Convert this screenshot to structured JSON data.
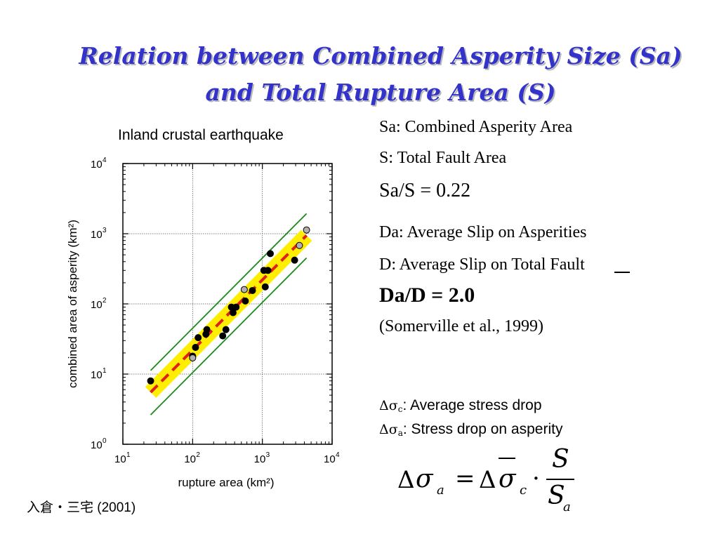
{
  "slide": {
    "title_line1": "Relation between Combined Asperity Size (Sa)",
    "title_line2": "and Total Rupture Area (S)",
    "definitions": {
      "sa": "Sa: Combined Asperity Area",
      "s": "S: Total Fault Area",
      "ratio_area": "Sa/S = 0.22",
      "da": "Da: Average Slip on Asperities",
      "d": "D: Average Slip on Total Fault",
      "ratio_slip": "Da/D = 2.0",
      "source": "(Somerville et al., 1999)"
    },
    "stress": {
      "delta_sigma": "Δσ",
      "sub_c": "c",
      "sub_a": "a",
      "line1_text": ": Average stress drop",
      "line2_text": ": Stress drop on asperity"
    },
    "formula": {
      "lhs_delta": "Δ",
      "sigma": "σ",
      "sub_a": "a",
      "equals": "=",
      "rhs_delta": "Δ",
      "sub_c": "c",
      "dot": "·",
      "numerator": "S",
      "denominator": "S",
      "den_sub": "a"
    },
    "reference": "入倉・三宅 (2001)"
  },
  "chart_data": {
    "type": "scatter",
    "title": "Inland crustal earthquake",
    "xlabel": "rupture area (km²)",
    "ylabel": "combined area of asperity (km²)",
    "xscale": "log",
    "yscale": "log",
    "xlim": [
      10,
      10000
    ],
    "ylim": [
      1,
      10000
    ],
    "x_ticks": [
      {
        "value": 10,
        "base": "10",
        "exp": "1"
      },
      {
        "value": 100,
        "base": "10",
        "exp": "2"
      },
      {
        "value": 1000,
        "base": "10",
        "exp": "3"
      },
      {
        "value": 10000,
        "base": "10",
        "exp": "4"
      }
    ],
    "y_ticks": [
      {
        "value": 1,
        "base": "10",
        "exp": "0"
      },
      {
        "value": 10,
        "base": "10",
        "exp": "1"
      },
      {
        "value": 100,
        "base": "10",
        "exp": "2"
      },
      {
        "value": 1000,
        "base": "10",
        "exp": "3"
      },
      {
        "value": 10000,
        "base": "10",
        "exp": "4"
      }
    ],
    "grid": true,
    "fit": {
      "ratio": 0.22,
      "x_range": [
        25,
        4300
      ],
      "color": "#e02020",
      "band_color": "#ffee00"
    },
    "bounds": [
      {
        "ratio": 0.45,
        "x_range": [
          25,
          4300
        ]
      },
      {
        "ratio": 0.105,
        "x_range": [
          25,
          4300
        ]
      }
    ],
    "bounds_color": "#1a8a1a",
    "series": [
      {
        "color": "#000000",
        "points": [
          [
            25,
            8
          ],
          [
            100,
            18
          ],
          [
            110,
            24
          ],
          [
            120,
            33
          ],
          [
            155,
            37
          ],
          [
            160,
            43
          ],
          [
            270,
            35
          ],
          [
            300,
            43
          ],
          [
            360,
            90
          ],
          [
            380,
            75
          ],
          [
            420,
            90
          ],
          [
            570,
            110
          ],
          [
            720,
            155
          ],
          [
            1050,
            300
          ],
          [
            1100,
            175
          ],
          [
            1200,
            300
          ],
          [
            1300,
            520
          ],
          [
            2900,
            420
          ]
        ]
      },
      {
        "color": "#b0b0b0",
        "points": [
          [
            100,
            17
          ],
          [
            550,
            160
          ],
          [
            3400,
            680
          ],
          [
            4300,
            1130
          ]
        ]
      }
    ]
  }
}
